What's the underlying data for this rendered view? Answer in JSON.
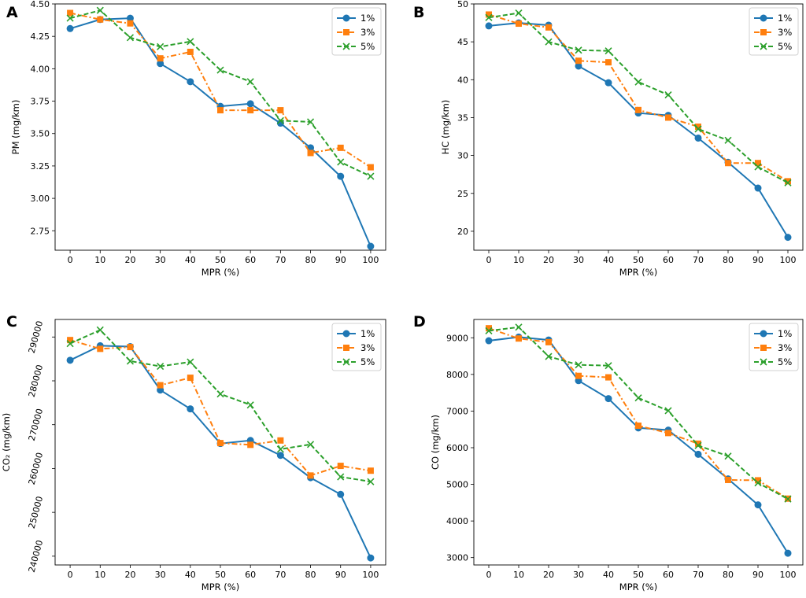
{
  "chart_data": [
    {
      "type": "line",
      "panel_label": "A",
      "xlabel": "MPR (%)",
      "ylabel": "PM (mg/km)",
      "x": [
        0,
        10,
        20,
        30,
        40,
        50,
        60,
        70,
        80,
        90,
        100
      ],
      "xticks": [
        "0",
        "10",
        "20",
        "30",
        "40",
        "50",
        "60",
        "70",
        "80",
        "90",
        "100"
      ],
      "ylim": [
        2.6,
        4.5
      ],
      "yticks": [
        2.75,
        3.0,
        3.25,
        3.5,
        3.75,
        4.0,
        4.25,
        4.5
      ],
      "ytick_labels": [
        "2.75",
        "3.00",
        "3.25",
        "3.50",
        "3.75",
        "4.00",
        "4.25",
        "4.50"
      ],
      "legend_position": "top-right",
      "series": [
        {
          "name": "1%",
          "color": "#1f77b4",
          "marker": "circle",
          "dash": "solid",
          "values": [
            4.31,
            4.38,
            4.39,
            4.04,
            3.9,
            3.71,
            3.73,
            3.58,
            3.39,
            3.17,
            2.63
          ]
        },
        {
          "name": "3%",
          "color": "#ff7f0e",
          "marker": "square",
          "dash": "dashdot",
          "values": [
            4.43,
            4.38,
            4.35,
            4.08,
            4.13,
            3.68,
            3.68,
            3.68,
            3.35,
            3.39,
            3.24
          ]
        },
        {
          "name": "5%",
          "color": "#2ca02c",
          "marker": "x",
          "dash": "dashed",
          "values": [
            4.39,
            4.45,
            4.24,
            4.17,
            4.21,
            3.99,
            3.9,
            3.6,
            3.59,
            3.28,
            3.17
          ]
        }
      ]
    },
    {
      "type": "line",
      "panel_label": "B",
      "xlabel": "MPR (%)",
      "ylabel": "HC (mg/km)",
      "x": [
        0,
        10,
        20,
        30,
        40,
        50,
        60,
        70,
        80,
        90,
        100
      ],
      "xticks": [
        "0",
        "10",
        "20",
        "30",
        "40",
        "50",
        "60",
        "70",
        "80",
        "90",
        "100"
      ],
      "ylim": [
        17.5,
        50
      ],
      "yticks": [
        20,
        25,
        30,
        35,
        40,
        45,
        50
      ],
      "ytick_labels": [
        "20",
        "25",
        "30",
        "35",
        "40",
        "45",
        "50"
      ],
      "legend_position": "top-right",
      "series": [
        {
          "name": "1%",
          "color": "#1f77b4",
          "marker": "circle",
          "dash": "solid",
          "values": [
            47.1,
            47.5,
            47.2,
            41.8,
            39.6,
            35.6,
            35.3,
            32.3,
            29.1,
            25.7,
            19.2
          ]
        },
        {
          "name": "3%",
          "color": "#ff7f0e",
          "marker": "square",
          "dash": "dashdot",
          "values": [
            48.6,
            47.4,
            46.9,
            42.5,
            42.3,
            36.0,
            35.0,
            33.8,
            29.0,
            29.0,
            26.6
          ]
        },
        {
          "name": "5%",
          "color": "#2ca02c",
          "marker": "x",
          "dash": "dashed",
          "values": [
            48.2,
            48.8,
            45.0,
            43.9,
            43.8,
            39.7,
            38.0,
            33.5,
            32.0,
            28.5,
            26.4
          ]
        }
      ]
    },
    {
      "type": "line",
      "panel_label": "C",
      "xlabel": "MPR (%)",
      "ylabel": "CO₂ (mg/km)",
      "x": [
        0,
        10,
        20,
        30,
        40,
        50,
        60,
        70,
        80,
        90,
        100
      ],
      "xticks": [
        "0",
        "10",
        "20",
        "30",
        "40",
        "50",
        "60",
        "70",
        "80",
        "90",
        "100"
      ],
      "ylim": [
        238000,
        294000
      ],
      "yticks": [
        240000,
        250000,
        260000,
        270000,
        280000,
        290000
      ],
      "ytick_labels": [
        "240000",
        "250000",
        "260000",
        "270000",
        "280000",
        "290000"
      ],
      "legend_position": "top-right",
      "series": [
        {
          "name": "1%",
          "color": "#1f77b4",
          "marker": "circle",
          "dash": "solid",
          "values": [
            284700,
            288000,
            287800,
            277900,
            273600,
            265700,
            266400,
            263000,
            257900,
            254100,
            239600
          ]
        },
        {
          "name": "3%",
          "color": "#ff7f0e",
          "marker": "square",
          "dash": "dashdot",
          "values": [
            289300,
            287300,
            287700,
            279000,
            280700,
            265800,
            265400,
            266400,
            258400,
            260600,
            259500
          ]
        },
        {
          "name": "5%",
          "color": "#2ca02c",
          "marker": "x",
          "dash": "dashed",
          "values": [
            288500,
            291600,
            284500,
            283300,
            284300,
            277000,
            274500,
            264400,
            265500,
            258100,
            257000
          ]
        }
      ]
    },
    {
      "type": "line",
      "panel_label": "D",
      "xlabel": "MPR (%)",
      "ylabel": "CO (mg/km)",
      "x": [
        0,
        10,
        20,
        30,
        40,
        50,
        60,
        70,
        80,
        90,
        100
      ],
      "xticks": [
        "0",
        "10",
        "20",
        "30",
        "40",
        "50",
        "60",
        "70",
        "80",
        "90",
        "100"
      ],
      "ylim": [
        2800,
        9500
      ],
      "yticks": [
        3000,
        4000,
        5000,
        6000,
        7000,
        8000,
        9000
      ],
      "ytick_labels": [
        "3000",
        "4000",
        "5000",
        "6000",
        "7000",
        "8000",
        "9000"
      ],
      "legend_position": "top-right",
      "series": [
        {
          "name": "1%",
          "color": "#1f77b4",
          "marker": "circle",
          "dash": "solid",
          "values": [
            8920,
            9020,
            8940,
            7830,
            7340,
            6540,
            6480,
            5820,
            5150,
            4440,
            3120
          ]
        },
        {
          "name": "3%",
          "color": "#ff7f0e",
          "marker": "square",
          "dash": "dashdot",
          "values": [
            9260,
            8980,
            8880,
            7960,
            7920,
            6600,
            6400,
            6110,
            5120,
            5110,
            4610
          ]
        },
        {
          "name": "5%",
          "color": "#2ca02c",
          "marker": "x",
          "dash": "dashed",
          "values": [
            9190,
            9290,
            8490,
            8260,
            8240,
            7360,
            7010,
            6060,
            5770,
            5040,
            4600
          ]
        }
      ]
    }
  ]
}
